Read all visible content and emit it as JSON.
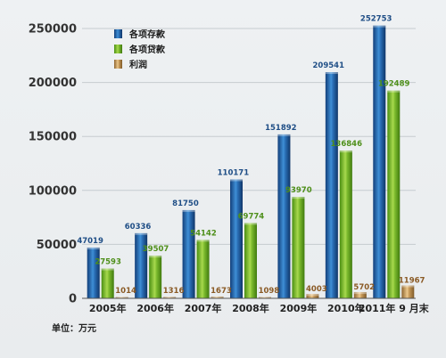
{
  "chart_data": {
    "type": "bar",
    "categories": [
      "2005年",
      "2006年",
      "2007年",
      "2008年",
      "2009年",
      "2010年",
      "2011年 9 月末"
    ],
    "series": [
      {
        "name": "各项存款",
        "color": "#2a6fb6",
        "values": [
          47019,
          60336,
          81750,
          110171,
          151892,
          209541,
          252753
        ]
      },
      {
        "name": "各项贷款",
        "color": "#7dbb2e",
        "values": [
          27593,
          39507,
          54142,
          69774,
          93970,
          136846,
          192489
        ]
      },
      {
        "name": "利润",
        "color": "#c79a5a",
        "values": [
          1014,
          1316,
          1673,
          1098,
          4003,
          5702,
          11967
        ]
      }
    ],
    "label_colors": [
      "#1f4e86",
      "#4e8f1a",
      "#8a5a25"
    ],
    "yticks": [
      0,
      50000,
      100000,
      150000,
      200000,
      250000
    ],
    "ylim": [
      0,
      250000
    ],
    "legend_position": "top-left",
    "grid": true
  },
  "unit_label": "单位：万元"
}
